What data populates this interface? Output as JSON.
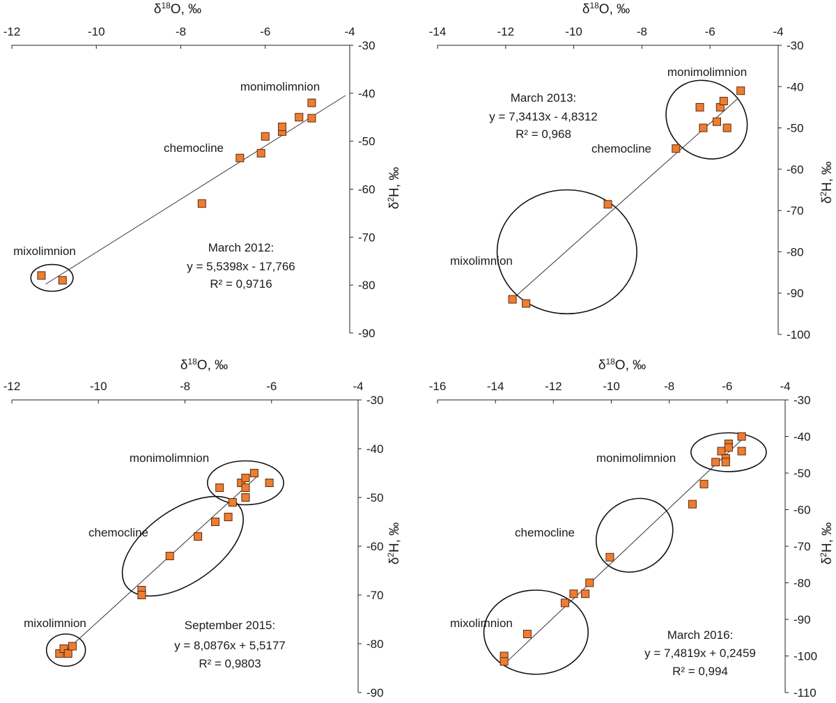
{
  "chart_data": [
    {
      "type": "scatter",
      "id": "p1",
      "xlabel": {
        "base": "δ",
        "sup": "18",
        "rest": "O, ‰"
      },
      "ylabel": {
        "base": "δ",
        "sup": "2",
        "rest": "H, ‰"
      },
      "xlim": [
        -12,
        -4
      ],
      "xticks": [
        "-12",
        "-10",
        "-8",
        "-6",
        "-4"
      ],
      "xtick_values": [
        -12,
        -10,
        -8,
        -6,
        -4
      ],
      "ylim": [
        -90,
        -30
      ],
      "yticks": [
        "-30",
        "-40",
        "-50",
        "-60",
        "-70",
        "-80",
        "-90"
      ],
      "ytick_values": [
        -30,
        -40,
        -50,
        -60,
        -70,
        -80,
        -90
      ],
      "points": [
        {
          "x": -11.3,
          "y": -78.0
        },
        {
          "x": -10.8,
          "y": -79.0
        },
        {
          "x": -7.5,
          "y": -63.0
        },
        {
          "x": -6.6,
          "y": -53.5
        },
        {
          "x": -6.1,
          "y": -52.5
        },
        {
          "x": -6.0,
          "y": -49.0
        },
        {
          "x": -5.6,
          "y": -48.0
        },
        {
          "x": -5.6,
          "y": -47.0
        },
        {
          "x": -5.2,
          "y": -45.0
        },
        {
          "x": -4.9,
          "y": -45.2
        },
        {
          "x": -4.9,
          "y": -42.0
        }
      ],
      "trendline": {
        "slope": 5.5398,
        "intercept": -17.766,
        "x_range": [
          -11.2,
          -4.1
        ]
      },
      "equation": {
        "title": "March 2012:",
        "line": "y = 5,5398x - 17,766",
        "r2": "R² = 0,9716"
      },
      "groups": [
        {
          "label": "mixolimnion",
          "ellipse": {
            "cx": -11.05,
            "cy": -78.5,
            "rx": 0.5,
            "ry": 2.8,
            "angle": 0
          }
        }
      ],
      "annotations": [
        "monimolimnion",
        "chemocline",
        "mixolimnion"
      ]
    },
    {
      "type": "scatter",
      "id": "p2",
      "xlabel": {
        "base": "δ",
        "sup": "18",
        "rest": "O, ‰"
      },
      "ylabel": {
        "base": "δ",
        "sup": "2",
        "rest": "H, ‰"
      },
      "xlim": [
        -14,
        -4
      ],
      "xticks": [
        "-14",
        "-12",
        "-10",
        "-8",
        "-6",
        "-4"
      ],
      "xtick_values": [
        -14,
        -12,
        -10,
        -8,
        -6,
        -4
      ],
      "ylim": [
        -100,
        -30
      ],
      "yticks": [
        "-30",
        "-40",
        "-50",
        "-60",
        "-70",
        "-80",
        "-90",
        "-100"
      ],
      "ytick_values": [
        -30,
        -40,
        -50,
        -60,
        -70,
        -80,
        -90,
        -100
      ],
      "points": [
        {
          "x": -11.8,
          "y": -91.5
        },
        {
          "x": -11.4,
          "y": -92.5
        },
        {
          "x": -9.0,
          "y": -68.5
        },
        {
          "x": -7.0,
          "y": -55.0
        },
        {
          "x": -6.3,
          "y": -45.0
        },
        {
          "x": -6.2,
          "y": -50.0
        },
        {
          "x": -5.8,
          "y": -48.5
        },
        {
          "x": -5.7,
          "y": -45.0
        },
        {
          "x": -5.6,
          "y": -43.5
        },
        {
          "x": -5.5,
          "y": -50.0
        },
        {
          "x": -5.1,
          "y": -41.0
        }
      ],
      "trendline": {
        "slope": 7.3413,
        "intercept": -4.8312,
        "x_range": [
          -11.8,
          -5.2
        ]
      },
      "equation": {
        "title": "March 2013:",
        "line": "y = 7,3413x - 4,8312",
        "r2": "R² = 0,968"
      },
      "groups": [
        {
          "label": "monimolimnion",
          "ellipse": {
            "cx": -6.1,
            "cy": -48.0,
            "rx": 1.25,
            "ry": 9.0,
            "angle": 38
          }
        },
        {
          "label": "mixolimnion",
          "ellipse": {
            "cx": -10.2,
            "cy": -80.0,
            "rx": 2.05,
            "ry": 15.0,
            "angle": 0
          }
        }
      ],
      "annotations": [
        "monimolimnion",
        "chemocline",
        "mixolimnion"
      ]
    },
    {
      "type": "scatter",
      "id": "p3",
      "xlabel": {
        "base": "δ",
        "sup": "18",
        "rest": "O, ‰"
      },
      "ylabel": {
        "base": "δ",
        "sup": "2",
        "rest": "H, ‰"
      },
      "xlim": [
        -12,
        -4
      ],
      "xticks": [
        "-12",
        "-10",
        "-8",
        "-6",
        "-4"
      ],
      "xtick_values": [
        -12,
        -10,
        -8,
        -6,
        -4
      ],
      "ylim": [
        -90,
        -30
      ],
      "yticks": [
        "-30",
        "-40",
        "-50",
        "-60",
        "-70",
        "-80",
        "-90"
      ],
      "ytick_values": [
        -30,
        -40,
        -50,
        -60,
        -70,
        -80,
        -90
      ],
      "points": [
        {
          "x": -10.9,
          "y": -82.0
        },
        {
          "x": -10.8,
          "y": -81.0
        },
        {
          "x": -10.7,
          "y": -82.0
        },
        {
          "x": -10.6,
          "y": -80.5
        },
        {
          "x": -9.0,
          "y": -69.0
        },
        {
          "x": -9.0,
          "y": -70.0
        },
        {
          "x": -8.35,
          "y": -62.0
        },
        {
          "x": -7.7,
          "y": -58.0
        },
        {
          "x": -7.3,
          "y": -55.0
        },
        {
          "x": -7.0,
          "y": -54.0
        },
        {
          "x": -6.9,
          "y": -51.0
        },
        {
          "x": -7.2,
          "y": -48.0
        },
        {
          "x": -6.7,
          "y": -47.0
        },
        {
          "x": -6.6,
          "y": -46.0
        },
        {
          "x": -6.6,
          "y": -48.0
        },
        {
          "x": -6.6,
          "y": -50.0
        },
        {
          "x": -6.4,
          "y": -45.0
        },
        {
          "x": -6.05,
          "y": -47.0
        }
      ],
      "trendline": {
        "slope": 8.0876,
        "intercept": 5.5177,
        "x_range": [
          -10.9,
          -6.3
        ]
      },
      "equation": {
        "title": "September 2015:",
        "line": "y = 8,0876x + 5,5177",
        "r2": "R² = 0,9803"
      },
      "groups": [
        {
          "label": "monimolimnion",
          "ellipse": {
            "cx": -6.6,
            "cy": -47.0,
            "rx": 0.88,
            "ry": 4.5,
            "angle": 0
          }
        },
        {
          "label": "chemocline",
          "ellipse": {
            "cx": -8.05,
            "cy": -60.0,
            "rx": 1.6,
            "ry": 7.5,
            "angle": -35
          }
        },
        {
          "label": "mixolimnion",
          "ellipse": {
            "cx": -10.75,
            "cy": -81.3,
            "rx": 0.45,
            "ry": 3.3,
            "angle": 0
          }
        }
      ],
      "annotations": [
        "monimolimnion",
        "chemocline",
        "mixolimnion"
      ]
    },
    {
      "type": "scatter",
      "id": "p4",
      "xlabel": {
        "base": "δ",
        "sup": "18",
        "rest": "O, ‰"
      },
      "ylabel": {
        "base": "δ",
        "sup": "2",
        "rest": "H, ‰"
      },
      "xlim": [
        -16,
        -4
      ],
      "xticks": [
        "-16",
        "-14",
        "-12",
        "-10",
        "-8",
        "-6",
        "-4"
      ],
      "xtick_values": [
        -16,
        -14,
        -12,
        -10,
        -8,
        -6,
        -4
      ],
      "ylim": [
        -110,
        -30
      ],
      "yticks": [
        "-30",
        "-40",
        "-50",
        "-60",
        "-70",
        "-80",
        "-90",
        "-100",
        "-110"
      ],
      "ytick_values": [
        -30,
        -40,
        -50,
        -60,
        -70,
        -80,
        -90,
        -100,
        -110
      ],
      "points": [
        {
          "x": -13.7,
          "y": -100.0
        },
        {
          "x": -13.7,
          "y": -101.5
        },
        {
          "x": -12.9,
          "y": -94.0
        },
        {
          "x": -11.6,
          "y": -85.5
        },
        {
          "x": -11.3,
          "y": -83.0
        },
        {
          "x": -10.9,
          "y": -83.0
        },
        {
          "x": -10.75,
          "y": -80.0
        },
        {
          "x": -10.05,
          "y": -73.0
        },
        {
          "x": -7.2,
          "y": -58.5
        },
        {
          "x": -6.8,
          "y": -53.0
        },
        {
          "x": -6.4,
          "y": -47.0
        },
        {
          "x": -6.2,
          "y": -44.0
        },
        {
          "x": -6.05,
          "y": -46.0
        },
        {
          "x": -6.05,
          "y": -47.0
        },
        {
          "x": -5.95,
          "y": -42.0
        },
        {
          "x": -5.95,
          "y": -43.0
        },
        {
          "x": -5.5,
          "y": -40.0
        },
        {
          "x": -5.5,
          "y": -44.0
        }
      ],
      "trendline": {
        "slope": 7.4819,
        "intercept": 0.2459,
        "x_range": [
          -13.75,
          -5.5
        ]
      },
      "equation": {
        "title": "March 2016:",
        "line": "y = 7,4819x + 0,2459",
        "r2": "R² = 0,994"
      },
      "groups": [
        {
          "label": "monimolimnion",
          "ellipse": {
            "cx": -5.95,
            "cy": -44.3,
            "rx": 1.3,
            "ry": 5.3,
            "angle": 0
          }
        },
        {
          "label": "chemocline",
          "ellipse": {
            "cx": -9.2,
            "cy": -67.0,
            "rx": 1.2,
            "ry": 11.0,
            "angle": 53
          }
        },
        {
          "label": "mixolimnion",
          "ellipse": {
            "cx": -12.6,
            "cy": -93.5,
            "rx": 1.8,
            "ry": 11.5,
            "angle": 0
          }
        }
      ],
      "annotations": [
        "monimolimnion",
        "chemocline",
        "mixolimnion"
      ]
    }
  ],
  "style": {
    "marker_fill": "#ED7D31",
    "marker_stroke": "#5a2a0e",
    "line_color": "#333333",
    "ellipse_color": "#111111"
  }
}
